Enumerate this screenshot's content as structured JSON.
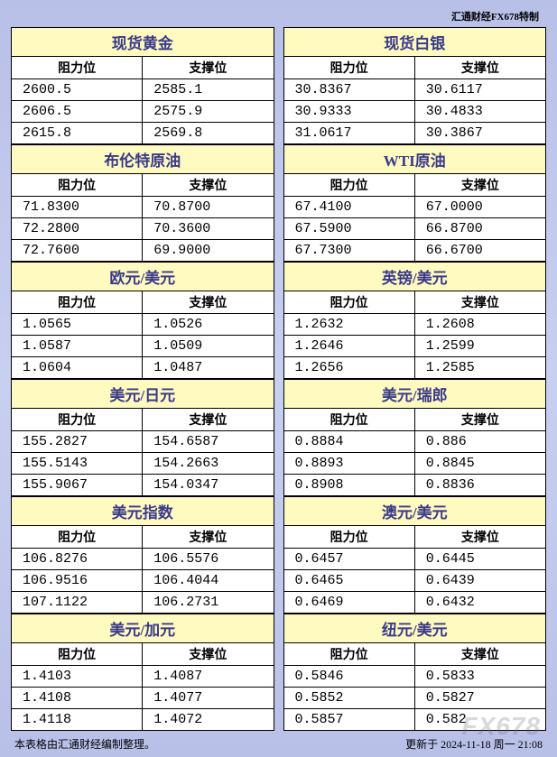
{
  "headerCredit": "汇通财经FX678特制",
  "columnHeaders": {
    "resistance": "阻力位",
    "support": "支撑位"
  },
  "left": [
    {
      "title": "现货黄金",
      "rows": [
        [
          "2600.5",
          "2585.1"
        ],
        [
          "2606.5",
          "2575.9"
        ],
        [
          "2615.8",
          "2569.8"
        ]
      ]
    },
    {
      "title": "布伦特原油",
      "rows": [
        [
          "71.8300",
          "70.8700"
        ],
        [
          "72.2800",
          "70.3600"
        ],
        [
          "72.7600",
          "69.9000"
        ]
      ]
    },
    {
      "title": "欧元/美元",
      "rows": [
        [
          "1.0565",
          "1.0526"
        ],
        [
          "1.0587",
          "1.0509"
        ],
        [
          "1.0604",
          "1.0487"
        ]
      ]
    },
    {
      "title": "美元/日元",
      "rows": [
        [
          "155.2827",
          "154.6587"
        ],
        [
          "155.5143",
          "154.2663"
        ],
        [
          "155.9067",
          "154.0347"
        ]
      ]
    },
    {
      "title": "美元指数",
      "rows": [
        [
          "106.8276",
          "106.5576"
        ],
        [
          "106.9516",
          "106.4044"
        ],
        [
          "107.1122",
          "106.2731"
        ]
      ]
    },
    {
      "title": "美元/加元",
      "rows": [
        [
          "1.4103",
          "1.4087"
        ],
        [
          "1.4108",
          "1.4077"
        ],
        [
          "1.4118",
          "1.4072"
        ]
      ]
    }
  ],
  "right": [
    {
      "title": "现货白银",
      "rows": [
        [
          "30.8367",
          "30.6117"
        ],
        [
          "30.9333",
          "30.4833"
        ],
        [
          "31.0617",
          "30.3867"
        ]
      ]
    },
    {
      "title": "WTI原油",
      "rows": [
        [
          "67.4100",
          "67.0000"
        ],
        [
          "67.5900",
          "66.8700"
        ],
        [
          "67.7300",
          "66.6700"
        ]
      ]
    },
    {
      "title": "英镑/美元",
      "rows": [
        [
          "1.2632",
          "1.2608"
        ],
        [
          "1.2646",
          "1.2599"
        ],
        [
          "1.2656",
          "1.2585"
        ]
      ]
    },
    {
      "title": "美元/瑞郎",
      "rows": [
        [
          "0.8884",
          "0.886"
        ],
        [
          "0.8893",
          "0.8845"
        ],
        [
          "0.8908",
          "0.8836"
        ]
      ]
    },
    {
      "title": "澳元/美元",
      "rows": [
        [
          "0.6457",
          "0.6445"
        ],
        [
          "0.6465",
          "0.6439"
        ],
        [
          "0.6469",
          "0.6432"
        ]
      ]
    },
    {
      "title": "纽元/美元",
      "rows": [
        [
          "0.5846",
          "0.5833"
        ],
        [
          "0.5852",
          "0.5827"
        ],
        [
          "0.5857",
          "0.582"
        ]
      ]
    }
  ],
  "footer": {
    "left": "本表格由汇通财经编制整理。",
    "right": "更新于 2024-11-18 周一 21:08"
  },
  "watermark": "FX678"
}
